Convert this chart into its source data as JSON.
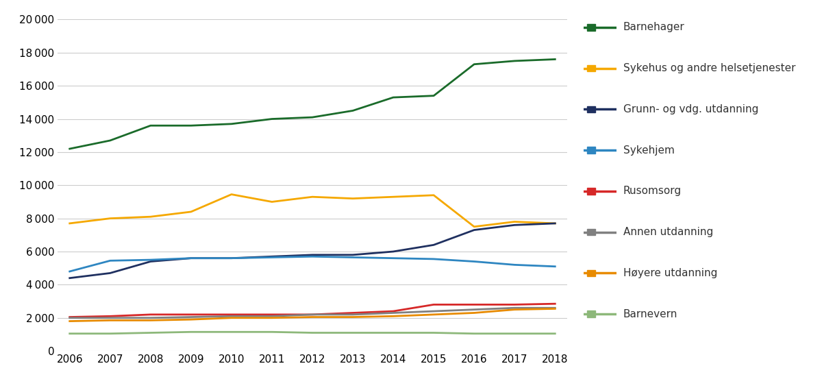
{
  "years": [
    2006,
    2007,
    2008,
    2009,
    2010,
    2011,
    2012,
    2013,
    2014,
    2015,
    2016,
    2017,
    2018
  ],
  "series": {
    "Barnehager": {
      "values": [
        12200,
        12700,
        13600,
        13600,
        13700,
        14000,
        14100,
        14500,
        15300,
        15400,
        17300,
        17500,
        17600
      ],
      "color": "#1a6b2a",
      "linewidth": 2.0
    },
    "Sykehus og andre helsetjenester": {
      "values": [
        7700,
        8000,
        8100,
        8400,
        9450,
        9000,
        9300,
        9200,
        9300,
        9400,
        7500,
        7800,
        7700
      ],
      "color": "#f5a800",
      "linewidth": 2.0
    },
    "Grunn- og vdg. utdanning": {
      "values": [
        4400,
        4700,
        5400,
        5600,
        5600,
        5700,
        5800,
        5800,
        6000,
        6400,
        7300,
        7600,
        7700
      ],
      "color": "#1f3060",
      "linewidth": 2.0
    },
    "Sykehjem": {
      "values": [
        4800,
        5450,
        5500,
        5600,
        5600,
        5650,
        5700,
        5650,
        5600,
        5550,
        5400,
        5200,
        5100
      ],
      "color": "#2e86c1",
      "linewidth": 2.0
    },
    "Rusomsorg": {
      "values": [
        2050,
        2100,
        2200,
        2200,
        2200,
        2200,
        2200,
        2300,
        2400,
        2800,
        2800,
        2800,
        2850
      ],
      "color": "#d62828",
      "linewidth": 2.0
    },
    "Annen utdanning": {
      "values": [
        2000,
        2000,
        2000,
        2050,
        2100,
        2100,
        2200,
        2200,
        2300,
        2400,
        2500,
        2600,
        2600
      ],
      "color": "#808080",
      "linewidth": 2.0
    },
    "Høyere utdanning": {
      "values": [
        1800,
        1850,
        1850,
        1900,
        2000,
        2000,
        2050,
        2050,
        2100,
        2200,
        2300,
        2500,
        2550
      ],
      "color": "#e88b00",
      "linewidth": 2.0
    },
    "Barnevern": {
      "values": [
        1050,
        1050,
        1100,
        1150,
        1150,
        1150,
        1100,
        1100,
        1100,
        1100,
        1050,
        1050,
        1050
      ],
      "color": "#8db87a",
      "linewidth": 2.0
    }
  },
  "ylim": [
    0,
    20000
  ],
  "yticks": [
    0,
    2000,
    4000,
    6000,
    8000,
    10000,
    12000,
    14000,
    16000,
    18000,
    20000
  ],
  "ytick_labels": [
    "0",
    "2 000",
    "4 000",
    "6 000",
    "8 000",
    "10 000",
    "12 000",
    "14 000",
    "16 000",
    "18 000",
    "20 000"
  ],
  "background_color": "#ffffff",
  "legend_order": [
    "Barnehager",
    "Sykehus og andre helsetjenester",
    "Grunn- og vdg. utdanning",
    "Sykehjem",
    "Rusomsorg",
    "Annen utdanning",
    "Høyere utdanning",
    "Barnevern"
  ]
}
